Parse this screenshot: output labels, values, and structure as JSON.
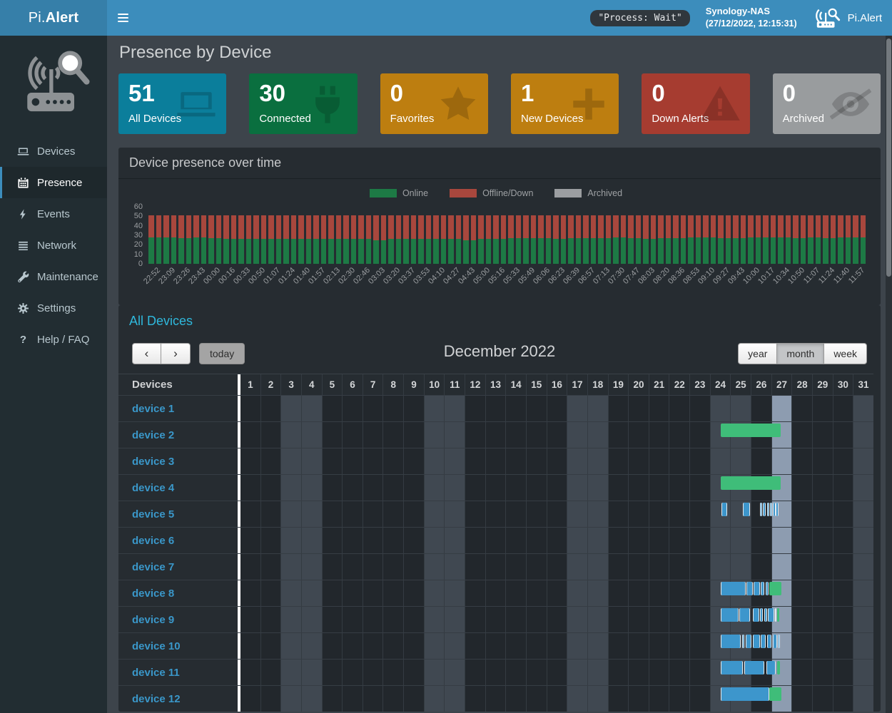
{
  "navbar": {
    "brand_prefix": "Pi.",
    "brand_suffix": "Alert",
    "process_badge": "\"Process: Wait\"",
    "host_name": "Synology-NAS",
    "host_time": "(27/12/2022, 12:15:31)",
    "app_name": "Pi.Alert"
  },
  "sidebar": {
    "items": [
      {
        "label": "Devices",
        "icon": "laptop",
        "active": false
      },
      {
        "label": "Presence",
        "icon": "calendar",
        "active": true
      },
      {
        "label": "Events",
        "icon": "bolt",
        "active": false
      },
      {
        "label": "Network",
        "icon": "list",
        "active": false
      },
      {
        "label": "Maintenance",
        "icon": "wrench",
        "active": false
      },
      {
        "label": "Settings",
        "icon": "gear",
        "active": false
      },
      {
        "label": "Help / FAQ",
        "icon": "question",
        "active": false
      }
    ]
  },
  "page": {
    "title": "Presence by Device"
  },
  "info_boxes": [
    {
      "value": "51",
      "label": "All Devices",
      "color": "#0b7e9b",
      "icon": "laptop"
    },
    {
      "value": "30",
      "label": "Connected",
      "color": "#0a6f3f",
      "icon": "plug"
    },
    {
      "value": "0",
      "label": "Favorites",
      "color": "#bd7e10",
      "icon": "star"
    },
    {
      "value": "1",
      "label": "New Devices",
      "color": "#bd7e10",
      "icon": "plus"
    },
    {
      "value": "0",
      "label": "Down Alerts",
      "color": "#a63c30",
      "icon": "warning"
    },
    {
      "value": "0",
      "label": "Archived",
      "color": "#999c9e",
      "icon": "eyeslash"
    }
  ],
  "chart_panel": {
    "title": "Device presence over time",
    "legend": [
      {
        "label": "Online",
        "color": "#1d7a45"
      },
      {
        "label": "Offline/Down",
        "color": "#a8473d"
      },
      {
        "label": "Archived",
        "color": "#9b9ea1"
      }
    ]
  },
  "chart_data": {
    "type": "bar",
    "stacked": true,
    "title": "Device presence over time",
    "ylim": [
      0,
      60
    ],
    "yticks": [
      0,
      10,
      20,
      30,
      40,
      50,
      60
    ],
    "total_devices": 51,
    "bars_per_label": 2,
    "x_labels": [
      "22:52",
      "23:09",
      "23:26",
      "23:43",
      "00:00",
      "00:16",
      "00:33",
      "00:50",
      "01:07",
      "01:24",
      "01:40",
      "01:57",
      "02:13",
      "02:30",
      "02:46",
      "03:03",
      "03:20",
      "03:37",
      "03:53",
      "04:10",
      "04:27",
      "04:43",
      "05:00",
      "05:16",
      "05:33",
      "05:49",
      "06:06",
      "06:23",
      "06:39",
      "06:57",
      "07:13",
      "07:30",
      "07:47",
      "08:03",
      "08:20",
      "08:36",
      "08:53",
      "09:10",
      "09:27",
      "09:43",
      "10:00",
      "10:17",
      "10:34",
      "10:50",
      "11:07",
      "11:24",
      "11:40",
      "11:57"
    ],
    "series": [
      {
        "name": "Online",
        "color": "#1d7a45",
        "values": [
          28,
          28,
          28,
          28,
          27,
          27,
          28,
          28,
          27,
          27,
          26,
          26,
          26,
          26,
          26,
          26,
          26,
          26,
          26,
          26,
          26,
          26,
          26,
          26,
          26,
          26,
          26,
          26,
          26,
          26,
          25,
          25,
          26,
          26,
          26,
          26,
          26,
          26,
          26,
          26,
          26,
          26,
          25,
          25,
          26,
          26,
          26,
          26,
          27,
          27,
          27,
          27,
          27,
          27,
          26,
          26,
          27,
          27,
          27,
          27,
          27,
          27,
          28,
          28,
          27,
          27,
          26,
          26,
          27,
          27,
          27,
          27,
          28,
          28,
          28,
          28,
          27,
          27,
          27,
          27,
          28,
          28,
          28,
          28,
          28,
          28,
          27,
          27,
          28,
          28,
          27,
          27,
          28,
          28,
          28,
          28
        ]
      },
      {
        "name": "Offline/Down",
        "color": "#a8473d",
        "values": [
          23,
          23,
          23,
          23,
          24,
          24,
          23,
          23,
          24,
          24,
          25,
          25,
          25,
          25,
          25,
          25,
          25,
          25,
          25,
          25,
          25,
          25,
          25,
          25,
          25,
          25,
          25,
          25,
          25,
          25,
          26,
          26,
          25,
          25,
          25,
          25,
          25,
          25,
          25,
          25,
          25,
          25,
          26,
          26,
          25,
          25,
          25,
          25,
          24,
          24,
          24,
          24,
          24,
          24,
          25,
          25,
          24,
          24,
          24,
          24,
          24,
          24,
          23,
          23,
          24,
          24,
          25,
          25,
          24,
          24,
          24,
          24,
          23,
          23,
          23,
          23,
          24,
          24,
          24,
          24,
          23,
          23,
          23,
          23,
          23,
          23,
          24,
          24,
          23,
          23,
          24,
          24,
          23,
          23,
          23,
          23
        ]
      },
      {
        "name": "Archived",
        "color": "#9b9ea1",
        "all_values_zero": true
      }
    ],
    "legend_position": "top-center",
    "grid": false
  },
  "calendar": {
    "title": "All Devices",
    "toolbar": {
      "prev_label": "‹",
      "next_label": "›",
      "today_label": "today",
      "month_title": "December 2022",
      "views": [
        "year",
        "month",
        "week"
      ],
      "active_view": "month"
    },
    "table": {
      "devices_header": "Devices",
      "day_numbers": [
        1,
        2,
        3,
        4,
        5,
        6,
        7,
        8,
        9,
        10,
        11,
        12,
        13,
        14,
        15,
        16,
        17,
        18,
        19,
        20,
        21,
        22,
        23,
        24,
        25,
        26,
        27,
        28,
        29,
        30,
        31
      ],
      "weekend_days": [
        3,
        4,
        10,
        11,
        17,
        18,
        24,
        25,
        31
      ],
      "today_day": 27
    },
    "event_colors": {
      "green": "#3fbd79",
      "blue": "#3d96cc"
    },
    "devices": [
      {
        "name": "device 1",
        "events": []
      },
      {
        "name": "device 2",
        "events": [
          {
            "color": "green",
            "start": 23.51,
            "end": 26.46
          }
        ]
      },
      {
        "name": "device 3",
        "events": []
      },
      {
        "name": "device 4",
        "events": [
          {
            "color": "green",
            "start": 23.51,
            "end": 26.46
          }
        ]
      },
      {
        "name": "device 5",
        "events": [
          {
            "color": "blue",
            "start": 23.57,
            "end": 23.82
          },
          {
            "color": "blue",
            "start": 24.61,
            "end": 24.96
          },
          {
            "color": "blue",
            "start": 25.43,
            "end": 25.54
          },
          {
            "color": "blue",
            "start": 25.6,
            "end": 25.72
          },
          {
            "color": "blue",
            "start": 25.78,
            "end": 25.89
          },
          {
            "color": "blue",
            "start": 25.93,
            "end": 26.05
          },
          {
            "color": "blue",
            "start": 26.08,
            "end": 26.2
          },
          {
            "color": "blue",
            "start": 26.22,
            "end": 26.36
          }
        ]
      },
      {
        "name": "device 6",
        "events": []
      },
      {
        "name": "device 7",
        "events": []
      },
      {
        "name": "device 8",
        "events": [
          {
            "color": "blue",
            "start": 23.51,
            "end": 24.73
          },
          {
            "color": "blue",
            "start": 24.78,
            "end": 25.08
          },
          {
            "color": "blue",
            "start": 25.13,
            "end": 25.43
          },
          {
            "color": "blue",
            "start": 25.48,
            "end": 25.66
          },
          {
            "color": "blue",
            "start": 25.72,
            "end": 25.85
          },
          {
            "color": "green",
            "start": 25.89,
            "end": 26.48
          }
        ]
      },
      {
        "name": "device 9",
        "events": [
          {
            "color": "blue",
            "start": 23.51,
            "end": 24.38
          },
          {
            "color": "blue",
            "start": 24.43,
            "end": 24.96
          },
          {
            "color": "blue",
            "start": 25.09,
            "end": 25.4
          },
          {
            "color": "blue",
            "start": 25.46,
            "end": 25.58
          },
          {
            "color": "blue",
            "start": 25.64,
            "end": 25.78
          },
          {
            "color": "blue",
            "start": 25.83,
            "end": 26.13
          },
          {
            "color": "blue",
            "start": 26.16,
            "end": 26.22
          },
          {
            "color": "green",
            "start": 26.28,
            "end": 26.4
          }
        ]
      },
      {
        "name": "device 10",
        "events": [
          {
            "color": "blue",
            "start": 23.51,
            "end": 24.5
          },
          {
            "color": "blue",
            "start": 24.56,
            "end": 24.68
          },
          {
            "color": "blue",
            "start": 24.74,
            "end": 25.03
          },
          {
            "color": "blue",
            "start": 25.11,
            "end": 25.43
          },
          {
            "color": "blue",
            "start": 25.48,
            "end": 25.72
          },
          {
            "color": "blue",
            "start": 25.78,
            "end": 26.01
          },
          {
            "color": "blue",
            "start": 26.07,
            "end": 26.28
          },
          {
            "color": "blue",
            "start": 26.33,
            "end": 26.42
          }
        ]
      },
      {
        "name": "device 11",
        "events": [
          {
            "color": "blue",
            "start": 23.51,
            "end": 24.61
          },
          {
            "color": "blue",
            "start": 24.67,
            "end": 25.66
          },
          {
            "color": "blue",
            "start": 25.77,
            "end": 26.22
          },
          {
            "color": "green",
            "start": 26.28,
            "end": 26.42
          }
        ]
      },
      {
        "name": "device 12",
        "events": [
          {
            "color": "blue",
            "start": 23.51,
            "end": 25.91
          },
          {
            "color": "green",
            "start": 25.91,
            "end": 26.48
          }
        ]
      }
    ]
  }
}
